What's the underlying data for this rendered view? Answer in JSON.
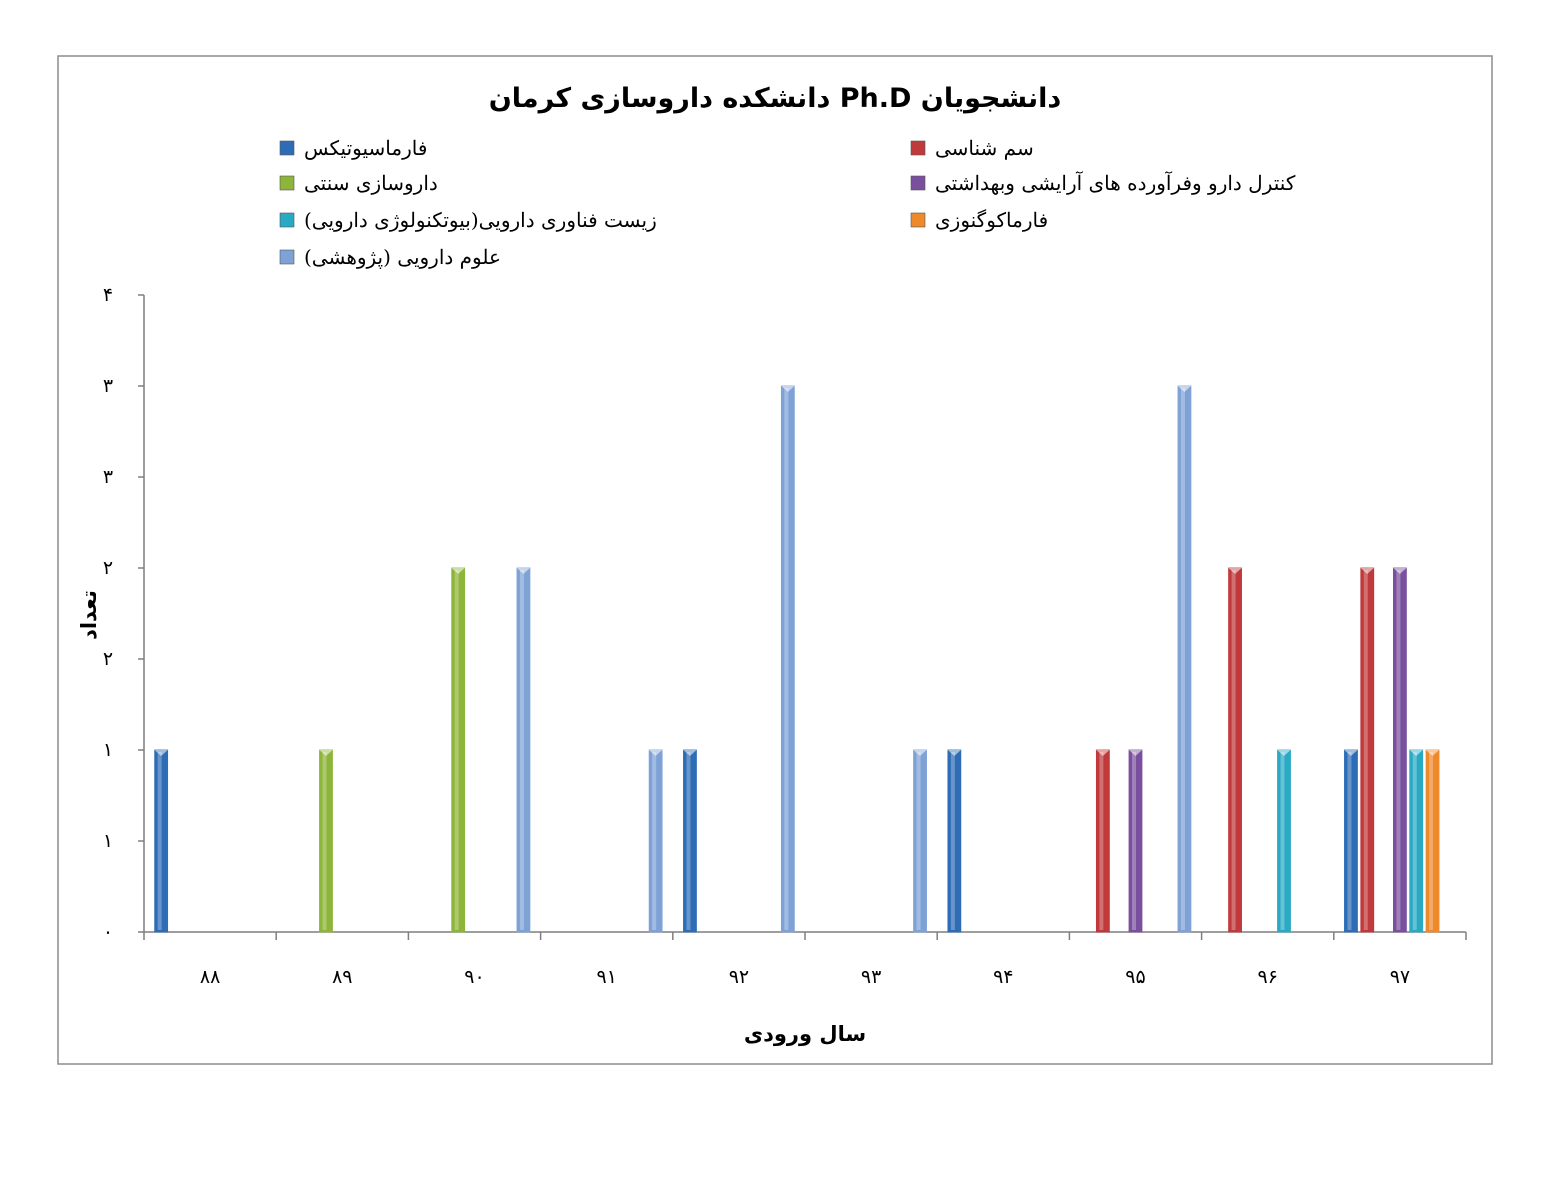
{
  "chart_data": {
    "type": "bar",
    "title": "دانشجویان  Ph.D  دانشکده داروسازی کرمان",
    "xlabel": "سال ورودی",
    "ylabel": "تعداد",
    "categories": [
      "۸۸",
      "۸۹",
      "۹۰",
      "۹۱",
      "۹۲",
      "۹۳",
      "۹۴",
      "۹۵",
      "۹۶",
      "۹۷"
    ],
    "y_tick_labels": [
      "۰",
      "۱",
      "۱",
      "۲",
      "۲",
      "۳",
      "۳",
      "۴"
    ],
    "ylim": [
      0,
      3.5
    ],
    "legend_position": "top",
    "grid": false,
    "series": [
      {
        "name": "فارماسیوتیکس",
        "color": "#2E6DB5",
        "values": [
          1,
          0,
          0,
          0,
          1,
          0,
          1,
          0,
          0,
          1
        ]
      },
      {
        "name": "سم شناسی",
        "color": "#C0393B",
        "values": [
          0,
          0,
          0,
          0,
          0,
          0,
          0,
          1,
          2,
          2
        ]
      },
      {
        "name": "داروسازی سنتی",
        "color": "#8DB53A",
        "values": [
          0,
          1,
          2,
          0,
          0,
          0,
          0,
          0,
          0,
          0
        ]
      },
      {
        "name": "کنترل دارو وفرآورده های آرایشی وبهداشتی",
        "color": "#7A509E",
        "values": [
          0,
          0,
          0,
          0,
          0,
          0,
          0,
          1,
          0,
          2
        ]
      },
      {
        "name": "زیست فناوری دارویی(بیوتکنولوژی دارویی)",
        "color": "#2AA9C4",
        "values": [
          0,
          0,
          0,
          0,
          0,
          0,
          0,
          0,
          1,
          1
        ]
      },
      {
        "name": "فارماکوگنوزی",
        "color": "#EE8A2B",
        "values": [
          0,
          0,
          0,
          0,
          0,
          0,
          0,
          0,
          0,
          1
        ]
      },
      {
        "name": "علوم دارویی (پژوهشی)",
        "color": "#7FA2D6",
        "values": [
          0,
          0,
          2,
          1,
          3,
          1,
          0,
          3,
          0,
          0
        ]
      }
    ]
  }
}
